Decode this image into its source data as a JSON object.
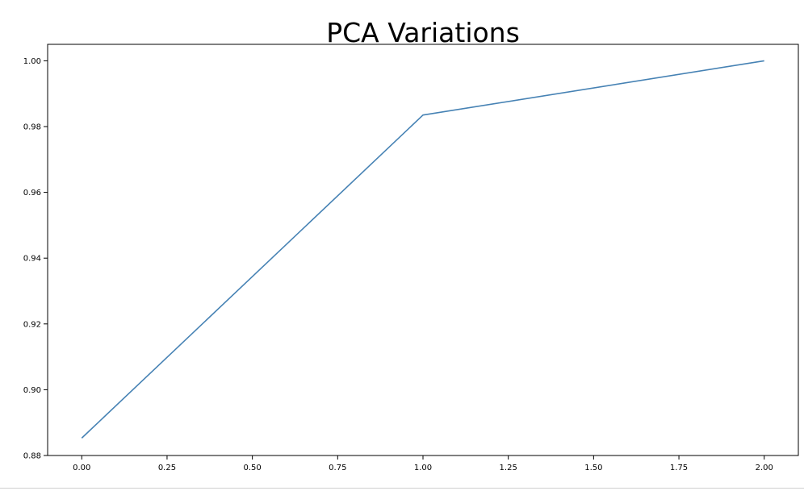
{
  "chart_data": {
    "type": "line",
    "title": "PCA Variations",
    "xlabel": "",
    "ylabel": "",
    "x": [
      0,
      1,
      2
    ],
    "series": [
      {
        "values": [
          0.8853,
          0.9835,
          1.0
        ],
        "color": "#4682b4"
      }
    ],
    "xlim": [
      -0.1,
      2.1
    ],
    "ylim": [
      0.88,
      1.005
    ],
    "xticks": [
      0.0,
      0.25,
      0.5,
      0.75,
      1.0,
      1.25,
      1.5,
      1.75,
      2.0
    ],
    "xtick_labels": [
      "0.00",
      "0.25",
      "0.50",
      "0.75",
      "1.00",
      "1.25",
      "1.50",
      "1.75",
      "2.00"
    ],
    "yticks": [
      0.88,
      0.9,
      0.92,
      0.94,
      0.96,
      0.98,
      1.0
    ],
    "ytick_labels": [
      "0.88",
      "0.90",
      "0.92",
      "0.94",
      "0.96",
      "0.98",
      "1.00"
    ],
    "grid": false,
    "legend": "none"
  }
}
